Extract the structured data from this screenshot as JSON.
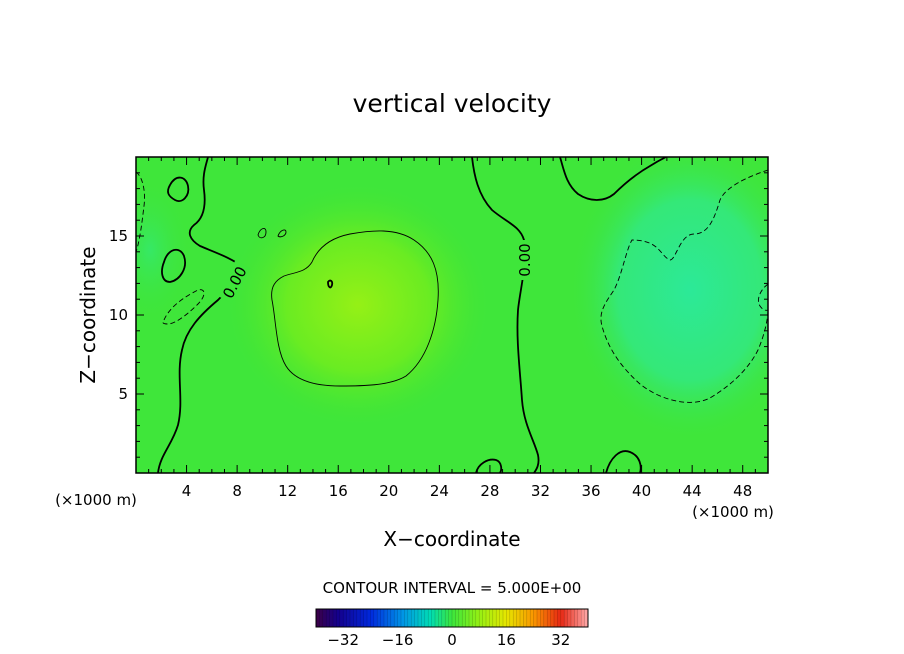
{
  "chart_data": {
    "type": "heatmap",
    "title": "vertical velocity",
    "xlabel": "X−coordinate",
    "ylabel": "Z−coordinate",
    "x_unit_left": "(×1000 m)",
    "x_unit_right": "(×1000 m)",
    "xlim": [
      0,
      50
    ],
    "ylim": [
      0,
      20
    ],
    "xticks": [
      4,
      8,
      12,
      16,
      20,
      24,
      28,
      32,
      36,
      40,
      44,
      48
    ],
    "yticks": [
      5,
      10,
      15
    ],
    "contour_labels": [
      "0.00",
      "0.00"
    ],
    "contour_interval_text": "CONTOUR INTERVAL = 5.000E+00",
    "colorbar": {
      "min": -40,
      "max": 40,
      "ticks": [
        -32,
        -16,
        0,
        16,
        32
      ],
      "tick_labels": [
        "−32",
        "−16",
        "0",
        "16",
        "32"
      ]
    },
    "field_description_values": {
      "max_positive_center": [
        18,
        11
      ],
      "min_negative_center": [
        46,
        11
      ]
    },
    "colors": {
      "background_field": "#3ee63c",
      "positive_peak": "#8ff018",
      "negative_trough": "#27e98a"
    }
  }
}
